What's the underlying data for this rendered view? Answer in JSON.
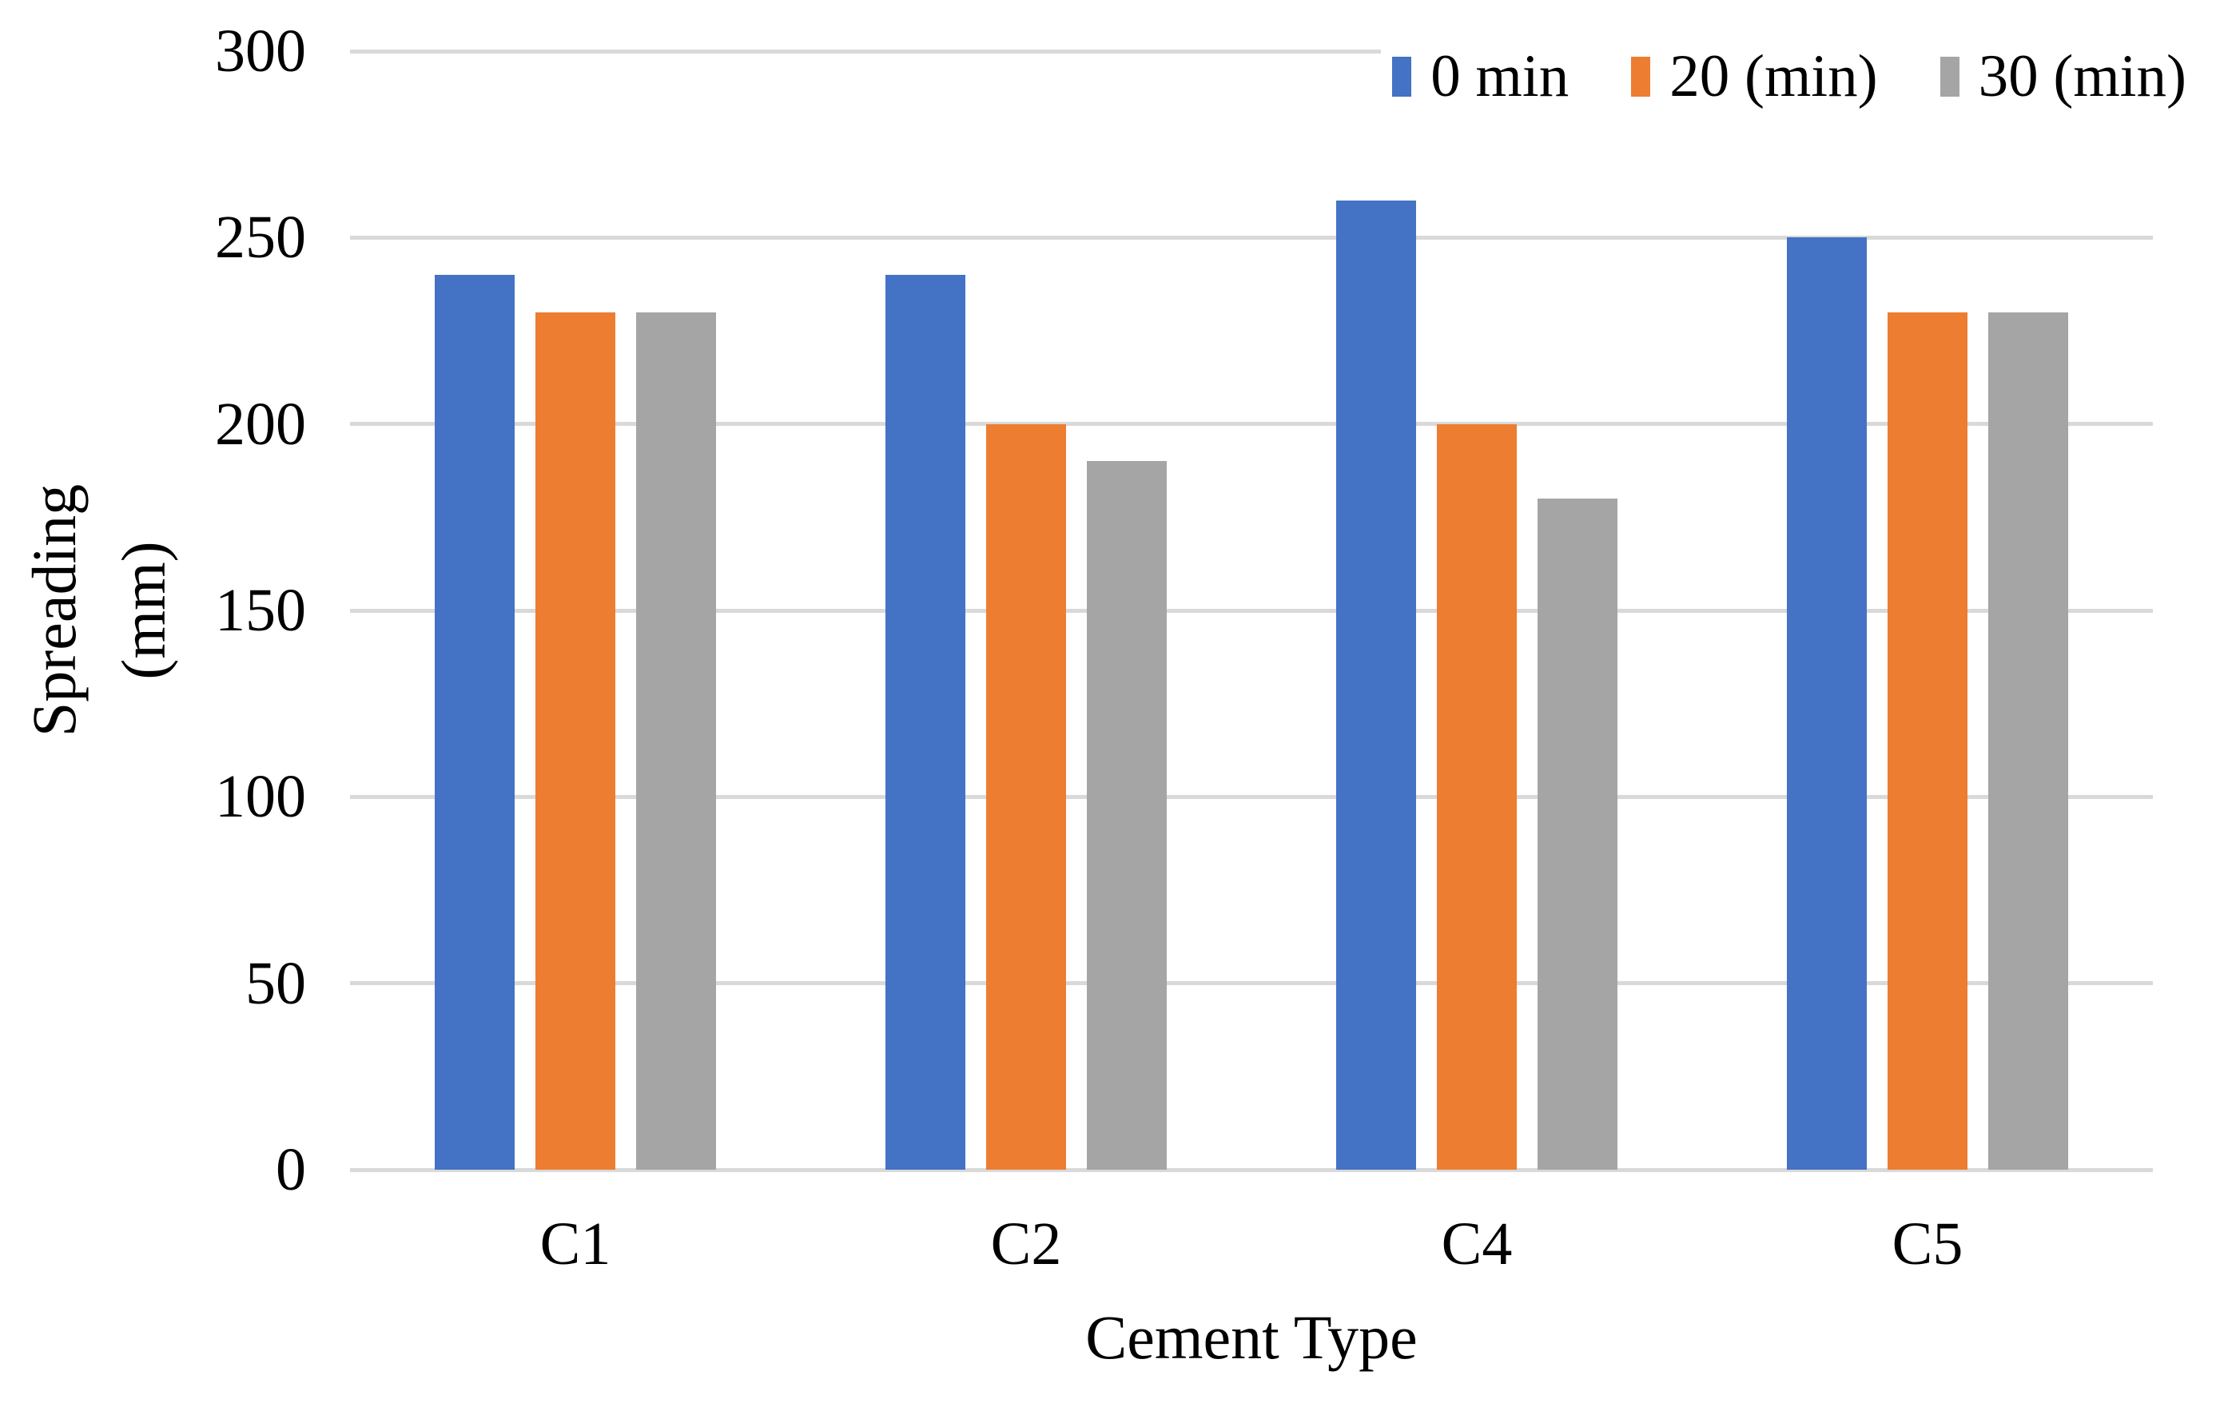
{
  "figure": {
    "y_axis_title_line1": "Spreading",
    "y_axis_title_line2": "(mm)",
    "x_axis_title": "Cement Type"
  },
  "chart_data": {
    "type": "bar",
    "title": "",
    "categories": [
      "C1",
      "C2",
      "C4",
      "C5"
    ],
    "series": [
      {
        "name": "0 min",
        "color": "#4472C4",
        "values": [
          240,
          240,
          260,
          250
        ]
      },
      {
        "name": "20 (min)",
        "color": "#ED7D31",
        "values": [
          230,
          200,
          200,
          230
        ]
      },
      {
        "name": "30 (min)",
        "color": "#A5A5A5",
        "values": [
          230,
          190,
          180,
          230
        ]
      }
    ],
    "xlabel": "Cement Type",
    "ylabel": "Spreading (mm)",
    "ylim": [
      0,
      300
    ],
    "ytick_step": 50,
    "yticks": [
      0,
      50,
      100,
      150,
      200,
      250,
      300
    ],
    "grid": true,
    "gridline_color": "#D9D9D9",
    "legend_position": "top-right",
    "background_color": "#FFFFFF",
    "text_color": "#000000"
  }
}
